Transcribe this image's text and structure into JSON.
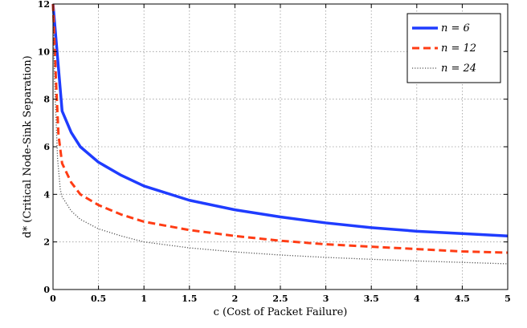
{
  "chart_data": {
    "type": "line",
    "xlabel": "c (Cost of Packet Failure)",
    "ylabel": "d* (Critical Node-Sink Separation)",
    "xlim": [
      0,
      5
    ],
    "ylim": [
      0,
      12
    ],
    "xticks": [
      "0",
      "0.5",
      "1",
      "1.5",
      "2",
      "2.5",
      "3",
      "3.5",
      "4",
      "4.5",
      "5"
    ],
    "yticks": [
      "0",
      "2",
      "4",
      "6",
      "8",
      "10",
      "12"
    ],
    "grid": true,
    "legend_position": "top-right",
    "series": [
      {
        "name": "n = 6",
        "color": "#1f3cff",
        "style": "solid",
        "x": [
          0.0,
          0.1,
          0.2,
          0.3,
          0.5,
          0.75,
          1.0,
          1.5,
          2.0,
          2.5,
          3.0,
          3.5,
          4.0,
          4.5,
          5.0
        ],
        "y": [
          12.0,
          7.5,
          6.6,
          6.0,
          5.35,
          4.8,
          4.35,
          3.75,
          3.35,
          3.05,
          2.8,
          2.6,
          2.45,
          2.35,
          2.25
        ]
      },
      {
        "name": "n = 12",
        "color": "#ff3c14",
        "style": "dashed",
        "x": [
          0.0,
          0.03,
          0.06,
          0.1,
          0.2,
          0.3,
          0.5,
          0.75,
          1.0,
          1.5,
          2.0,
          2.5,
          3.0,
          3.5,
          4.0,
          4.5,
          5.0
        ],
        "y": [
          12.0,
          9.0,
          6.5,
          5.3,
          4.5,
          4.0,
          3.55,
          3.15,
          2.85,
          2.5,
          2.25,
          2.05,
          1.9,
          1.8,
          1.7,
          1.6,
          1.55
        ]
      },
      {
        "name": "n = 24",
        "color": "#555555",
        "style": "dotted",
        "x": [
          0.0,
          0.02,
          0.05,
          0.08,
          0.1,
          0.2,
          0.3,
          0.5,
          0.75,
          1.0,
          1.5,
          2.0,
          2.5,
          3.0,
          3.5,
          4.0,
          4.5,
          5.0
        ],
        "y": [
          12.0,
          8.5,
          5.5,
          4.2,
          3.9,
          3.3,
          2.95,
          2.55,
          2.25,
          2.0,
          1.75,
          1.58,
          1.45,
          1.35,
          1.27,
          1.2,
          1.14,
          1.08
        ]
      }
    ]
  }
}
